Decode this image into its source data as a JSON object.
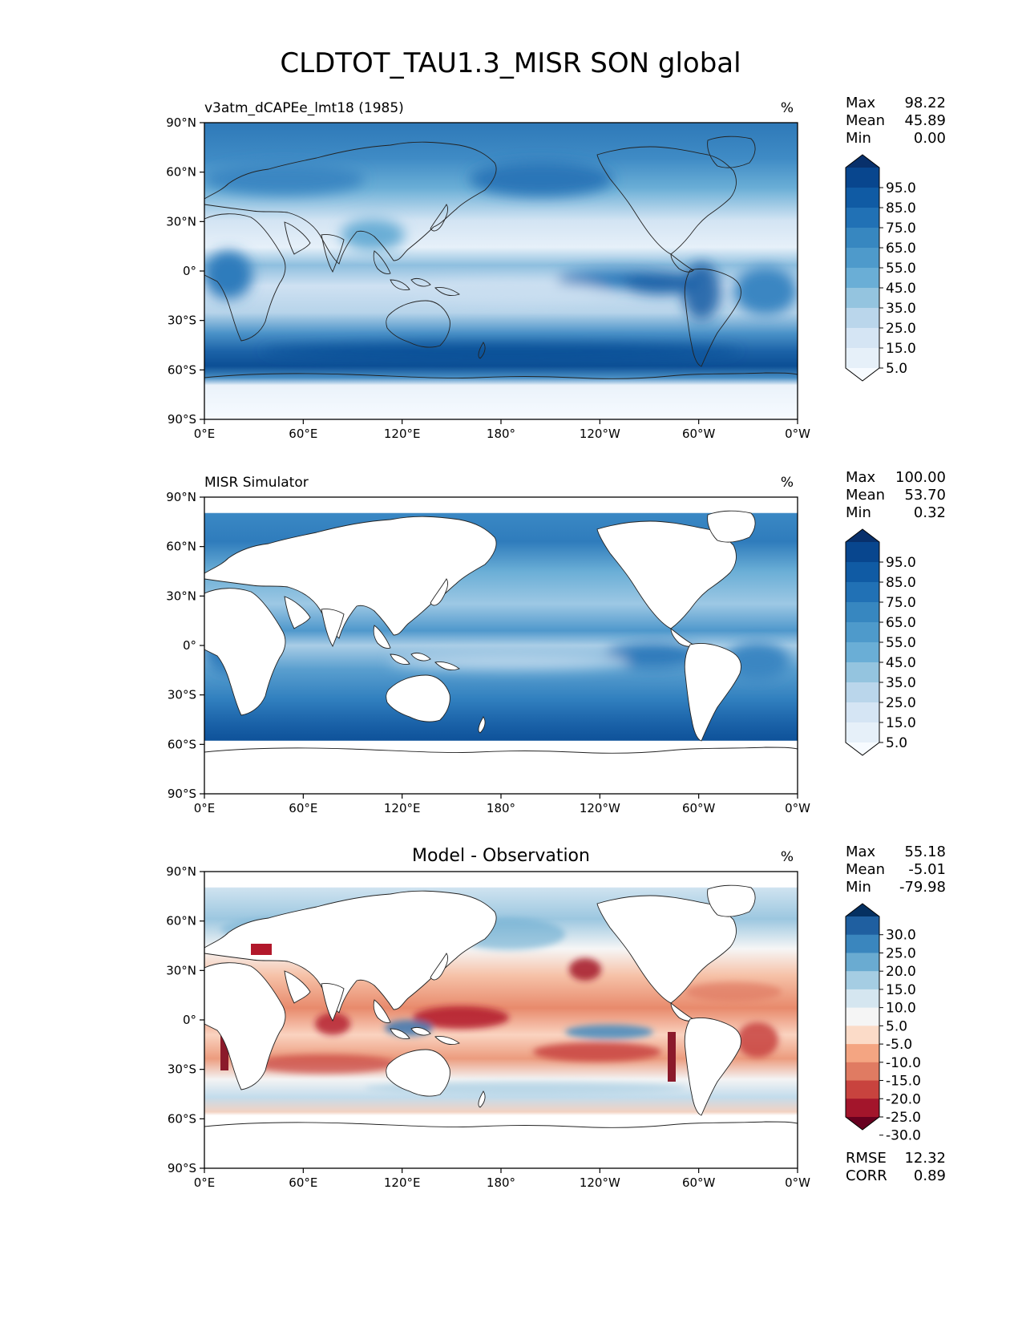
{
  "title": "CLDTOT_TAU1.3_MISR SON global",
  "lat_ticks": [
    "90°N",
    "60°N",
    "30°N",
    "0°",
    "30°S",
    "60°S",
    "90°S"
  ],
  "lon_ticks": [
    "0°E",
    "60°E",
    "120°E",
    "180°",
    "120°W",
    "60°W",
    "0°W"
  ],
  "panels": [
    {
      "id": "model",
      "title_left": "v3atm_dCAPEe_lmt18 (1985)",
      "title_center": "",
      "units": "%",
      "stats": [
        {
          "label": "Max",
          "value": "98.22"
        },
        {
          "label": "Mean",
          "value": "45.89"
        },
        {
          "label": "Min",
          "value": "0.00"
        }
      ],
      "colorbar": {
        "labels": [
          "95.0",
          "85.0",
          "75.0",
          "65.0",
          "55.0",
          "45.0",
          "35.0",
          "25.0",
          "15.0",
          "5.0"
        ],
        "colors": [
          "#08306b",
          "#08468e",
          "#105ba4",
          "#2171b5",
          "#3787c0",
          "#4e9acb",
          "#6aaed6",
          "#94c4df",
          "#bad6eb",
          "#d5e5f4",
          "#e6f0f9",
          "#f7fbff"
        ]
      }
    },
    {
      "id": "obs",
      "title_left": "MISR Simulator",
      "title_center": "",
      "units": "%",
      "stats": [
        {
          "label": "Max",
          "value": "100.00"
        },
        {
          "label": "Mean",
          "value": "53.70"
        },
        {
          "label": "Min",
          "value": "0.32"
        }
      ],
      "colorbar": {
        "labels": [
          "95.0",
          "85.0",
          "75.0",
          "65.0",
          "55.0",
          "45.0",
          "35.0",
          "25.0",
          "15.0",
          "5.0"
        ],
        "colors": [
          "#08306b",
          "#08468e",
          "#105ba4",
          "#2171b5",
          "#3787c0",
          "#4e9acb",
          "#6aaed6",
          "#94c4df",
          "#bad6eb",
          "#d5e5f4",
          "#e6f0f9",
          "#f7fbff"
        ]
      }
    },
    {
      "id": "diff",
      "title_left": "",
      "title_center": "Model - Observation",
      "units": "%",
      "stats": [
        {
          "label": "Max",
          "value": "55.18"
        },
        {
          "label": "Mean",
          "value": "-5.01"
        },
        {
          "label": "Min",
          "value": "-79.98"
        }
      ],
      "extra_stats": [
        {
          "label": "RMSE",
          "value": "12.32"
        },
        {
          "label": "CORR",
          "value": "0.89"
        }
      ],
      "colorbar": {
        "labels": [
          "30.0",
          "25.0",
          "20.0",
          "15.0",
          "10.0",
          "5.0",
          "-5.0",
          "-10.0",
          "-15.0",
          "-20.0",
          "-25.0",
          "-30.0"
        ],
        "colors": [
          "#053061",
          "#1f5fa0",
          "#3a86be",
          "#6aabd1",
          "#a5cde3",
          "#d5e6f0",
          "#f5f5f5",
          "#fbdbc8",
          "#f4a582",
          "#e07b62",
          "#c8433e",
          "#a3152b",
          "#67001f"
        ]
      }
    }
  ]
}
